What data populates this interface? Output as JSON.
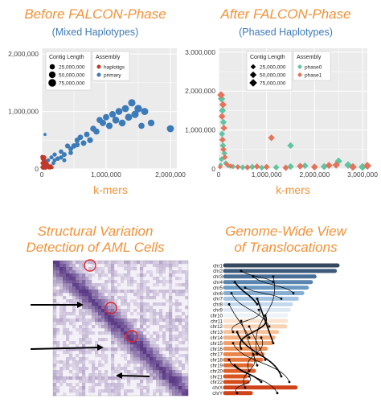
{
  "panels": {
    "before": {
      "title": "Before FALCON-Phase",
      "subtitle": "(Mixed Haplotypes)",
      "xlabel": "k-mers"
    },
    "after": {
      "title": "After FALCON-Phase",
      "subtitle": "(Phased Haplotypes)",
      "xlabel": "k-mers"
    },
    "sv": {
      "title_line1": "Structural Variation",
      "title_line2": "Detection of AML Cells"
    },
    "genome": {
      "title_line1": "Genome-Wide View",
      "title_line2": "of Translocations"
    }
  },
  "colors": {
    "title": "#f0923a",
    "subtitle": "#3d7ab8",
    "haplotigs": "#c0392b",
    "primary": "#3d7ab8",
    "phase0": "#5ec4a1",
    "phase1": "#e5735b",
    "heatmap": "#5b3a86"
  },
  "chart_data": [
    {
      "type": "scatter",
      "title": "Before FALCON-Phase",
      "subtitle": "(Mixed Haplotypes)",
      "xlabel": "k-mers",
      "xlim": [
        0,
        2100000
      ],
      "ylim": [
        0,
        2100000
      ],
      "xticks": [
        0,
        1000000,
        2000000
      ],
      "xtick_labels": [
        "0",
        "1,000,000",
        "2,000,000"
      ],
      "yticks": [
        0,
        1000000,
        2000000
      ],
      "ytick_labels": [
        "0",
        "1,000,000",
        "2,000,000"
      ],
      "grid": true,
      "legend_size": {
        "title": "Contig Length",
        "entries": [
          "25,000,000",
          "50,000,000",
          "75,000,000"
        ],
        "values": [
          25000000,
          50000000,
          75000000
        ]
      },
      "legend_color": {
        "title": "Assembly",
        "entries": [
          "haplotigs",
          "primary"
        ]
      },
      "legend_position": "top-left",
      "series": [
        {
          "name": "haplotigs",
          "marker": "circle",
          "points": [
            [
              10000,
              100000,
              8000000
            ],
            [
              20000,
              50000,
              5000000
            ],
            [
              30000,
              150000,
              10000000
            ],
            [
              50000,
              80000,
              6000000
            ],
            [
              40000,
              20000,
              4000000
            ],
            [
              60000,
              120000,
              9000000
            ],
            [
              15000,
              180000,
              12000000
            ],
            [
              70000,
              40000,
              5000000
            ],
            [
              80000,
              90000,
              7000000
            ],
            [
              90000,
              30000,
              4000000
            ],
            [
              25000,
              60000,
              6000000
            ],
            [
              45000,
              140000,
              11000000
            ],
            [
              100000,
              60000,
              5000000
            ],
            [
              110000,
              20000,
              4000000
            ],
            [
              35000,
              200000,
              14000000
            ],
            [
              55000,
              10000,
              3000000
            ],
            [
              5000,
              30000,
              5000000
            ],
            [
              65000,
              70000,
              6000000
            ],
            [
              120000,
              40000,
              4000000
            ],
            [
              130000,
              15000,
              3000000
            ],
            [
              140000,
              50000,
              5000000
            ],
            [
              8000,
              210000,
              9000000
            ],
            [
              20000,
              10000,
              3000000
            ],
            [
              160000,
              25000,
              3000000
            ]
          ]
        },
        {
          "name": "primary",
          "marker": "circle",
          "points": [
            [
              50000,
              600000,
              3000000
            ],
            [
              100000,
              150000,
              8000000
            ],
            [
              150000,
              200000,
              10000000
            ],
            [
              200000,
              250000,
              12000000
            ],
            [
              250000,
              180000,
              15000000
            ],
            [
              300000,
              300000,
              15000000
            ],
            [
              350000,
              250000,
              18000000
            ],
            [
              400000,
              400000,
              20000000
            ],
            [
              450000,
              350000,
              20000000
            ],
            [
              500000,
              400000,
              25000000
            ],
            [
              550000,
              500000,
              25000000
            ],
            [
              600000,
              550000,
              28000000
            ],
            [
              650000,
              450000,
              30000000
            ],
            [
              700000,
              600000,
              30000000
            ],
            [
              750000,
              500000,
              35000000
            ],
            [
              800000,
              700000,
              38000000
            ],
            [
              850000,
              650000,
              40000000
            ],
            [
              900000,
              850000,
              42000000
            ],
            [
              950000,
              800000,
              45000000
            ],
            [
              1000000,
              900000,
              45000000
            ],
            [
              1050000,
              750000,
              48000000
            ],
            [
              1100000,
              950000,
              50000000
            ],
            [
              1150000,
              850000,
              55000000
            ],
            [
              1200000,
              1000000,
              55000000
            ],
            [
              1250000,
              800000,
              55000000
            ],
            [
              1300000,
              1050000,
              60000000
            ],
            [
              1350000,
              900000,
              60000000
            ],
            [
              1400000,
              1150000,
              65000000
            ],
            [
              1450000,
              950000,
              65000000
            ],
            [
              1500000,
              1050000,
              70000000
            ],
            [
              1550000,
              750000,
              40000000
            ],
            [
              1600000,
              1000000,
              60000000
            ],
            [
              1700000,
              800000,
              50000000
            ],
            [
              2000000,
              700000,
              60000000
            ],
            [
              200000,
              150000,
              10000000
            ],
            [
              300000,
              200000,
              12000000
            ],
            [
              450000,
              280000,
              15000000
            ],
            [
              550000,
              420000,
              22000000
            ],
            [
              180000,
              100000,
              8000000
            ],
            [
              350000,
              150000,
              10000000
            ]
          ]
        }
      ]
    },
    {
      "type": "scatter",
      "title": "After FALCON-Phase",
      "subtitle": "(Phased Haplotypes)",
      "xlabel": "k-mers",
      "xlim": [
        0,
        3100000
      ],
      "ylim": [
        0,
        3100000
      ],
      "xticks": [
        0,
        1000000,
        2000000,
        3000000
      ],
      "xtick_labels": [
        "0",
        "1,000,000",
        "2,000,000",
        "3,000,000"
      ],
      "yticks": [
        0,
        1000000,
        2000000,
        3000000
      ],
      "ytick_labels": [
        "0",
        "1,000,000",
        "2,000,000",
        "3,000,000"
      ],
      "grid": true,
      "legend_size": {
        "title": "Contig Length",
        "entries": [
          "25,000,000",
          "50,000,000",
          "75,000,000"
        ],
        "values": [
          25000000,
          50000000,
          75000000
        ]
      },
      "legend_color": {
        "title": "Assembly",
        "entries": [
          "phase0",
          "phase1"
        ]
      },
      "legend_position": "top-right",
      "series": [
        {
          "name": "phase0",
          "marker": "diamond",
          "points": [
            [
              60000,
              1800000,
              40000000
            ],
            [
              80000,
              1500000,
              35000000
            ],
            [
              100000,
              1200000,
              30000000
            ],
            [
              70000,
              900000,
              25000000
            ],
            [
              90000,
              600000,
              25000000
            ],
            [
              120000,
              400000,
              20000000
            ],
            [
              60000,
              250000,
              18000000
            ],
            [
              150000,
              150000,
              15000000
            ],
            [
              200000,
              80000,
              12000000
            ],
            [
              300000,
              60000,
              15000000
            ],
            [
              500000,
              40000,
              20000000
            ],
            [
              700000,
              50000,
              25000000
            ],
            [
              900000,
              30000,
              20000000
            ],
            [
              1200000,
              40000,
              25000000
            ],
            [
              1500000,
              60000,
              30000000
            ],
            [
              1800000,
              80000,
              30000000
            ],
            [
              2200000,
              60000,
              35000000
            ],
            [
              2500000,
              200000,
              40000000
            ],
            [
              2700000,
              100000,
              45000000
            ],
            [
              3000000,
              50000,
              50000000
            ],
            [
              1500000,
              600000,
              30000000
            ],
            [
              40000,
              100000,
              10000000
            ]
          ]
        },
        {
          "name": "phase1",
          "marker": "diamond",
          "points": [
            [
              50000,
              1900000,
              45000000
            ],
            [
              90000,
              1650000,
              38000000
            ],
            [
              70000,
              1350000,
              32000000
            ],
            [
              110000,
              1050000,
              28000000
            ],
            [
              80000,
              750000,
              25000000
            ],
            [
              100000,
              500000,
              22000000
            ],
            [
              130000,
              300000,
              18000000
            ],
            [
              170000,
              120000,
              15000000
            ],
            [
              250000,
              70000,
              15000000
            ],
            [
              400000,
              50000,
              18000000
            ],
            [
              600000,
              40000,
              22000000
            ],
            [
              800000,
              60000,
              25000000
            ],
            [
              1000000,
              50000,
              25000000
            ],
            [
              1100000,
              800000,
              30000000
            ],
            [
              1400000,
              30000,
              28000000
            ],
            [
              1700000,
              70000,
              32000000
            ],
            [
              2000000,
              50000,
              35000000
            ],
            [
              2300000,
              90000,
              38000000
            ],
            [
              2450000,
              100000,
              40000000
            ],
            [
              2800000,
              50000,
              45000000
            ],
            [
              3100000,
              80000,
              50000000
            ],
            [
              30000,
              50000,
              10000000
            ]
          ]
        }
      ]
    }
  ],
  "genome": {
    "chromosomes": [
      "chr1",
      "chr2",
      "chr3",
      "chr4",
      "chr5",
      "chr6",
      "chr7",
      "chr8",
      "chr9",
      "chr10",
      "chr11",
      "chr12",
      "chr13",
      "chr14",
      "chr15",
      "chr16",
      "chr17",
      "chr18",
      "chr19",
      "chr20",
      "chr21",
      "chr22",
      "chrX",
      "chrY"
    ],
    "lengths": [
      249,
      243,
      198,
      190,
      181,
      171,
      159,
      146,
      141,
      135,
      135,
      133,
      115,
      107,
      102,
      90,
      83,
      80,
      58,
      64,
      46,
      50,
      156,
      57
    ]
  }
}
